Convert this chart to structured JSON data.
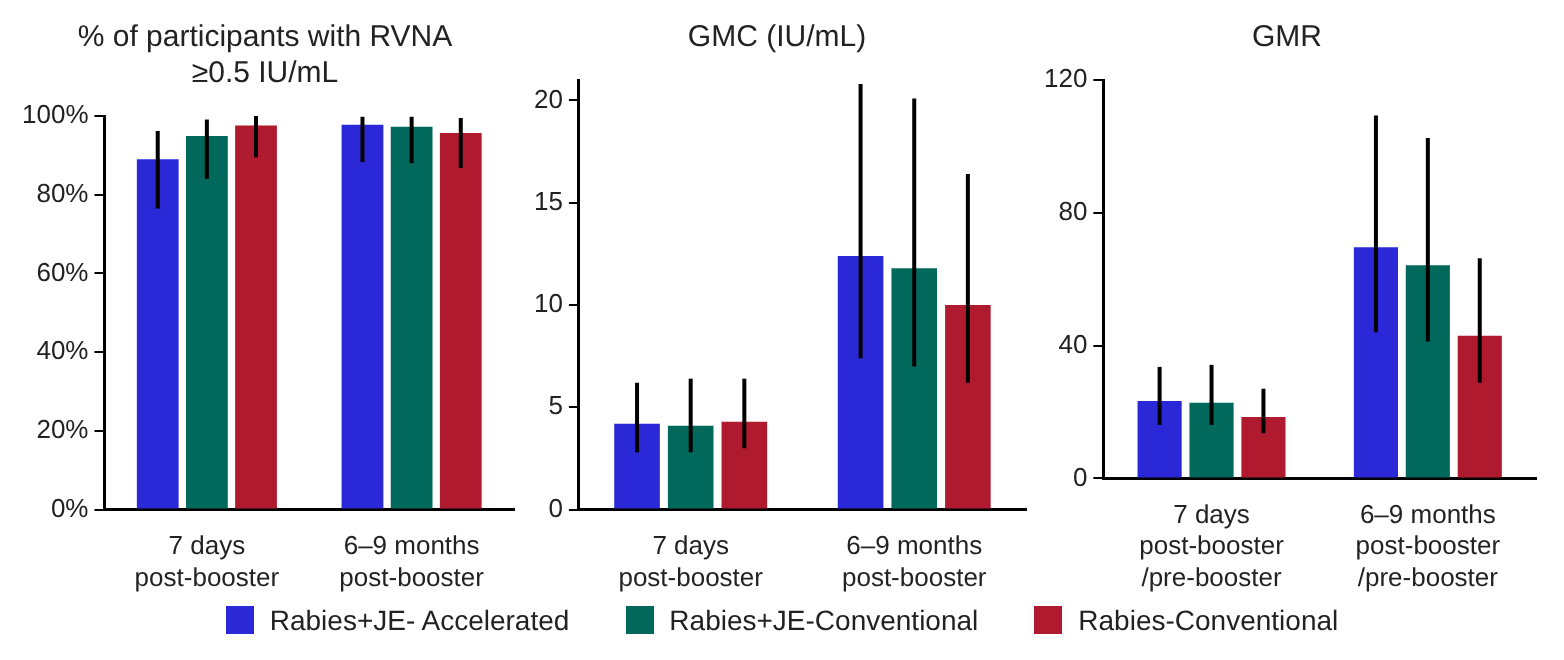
{
  "chart_data": [
    {
      "type": "bar",
      "title": "% of participants with RVNA\n≥0.5 IU/mL",
      "categories": [
        "7 days\npost-booster",
        "6–9 months\npost-booster"
      ],
      "ylim": [
        0,
        100
      ],
      "yticks": [
        {
          "value": 0,
          "label": "0%"
        },
        {
          "value": 20,
          "label": "20%"
        },
        {
          "value": 40,
          "label": "40%"
        },
        {
          "value": 60,
          "label": "60%"
        },
        {
          "value": 80,
          "label": "80%"
        },
        {
          "value": 100,
          "label": "100%"
        }
      ],
      "legend": "bottom",
      "series": [
        {
          "name": "Rabies+JE- Accelerated",
          "color": "#2b28d8",
          "values": [
            89.0,
            97.8
          ],
          "errors": [
            [
              76.5,
              96.2
            ],
            [
              88.3,
              99.8
            ]
          ]
        },
        {
          "name": "Rabies+JE-Conventional",
          "color": "#00695c",
          "values": [
            94.9,
            97.3
          ],
          "errors": [
            [
              84.0,
              99.1
            ],
            [
              88.0,
              99.8
            ]
          ]
        },
        {
          "name": "Rabies-Conventional",
          "color": "#b01a2e",
          "values": [
            97.6,
            95.7
          ],
          "errors": [
            [
              89.5,
              100
            ],
            [
              86.8,
              99.5
            ]
          ]
        }
      ]
    },
    {
      "type": "bar",
      "title": "GMC (IU/mL)",
      "categories": [
        "7 days\npost-booster",
        "6–9 months\npost-booster"
      ],
      "ylim": [
        0,
        21
      ],
      "yticks": [
        0,
        5,
        10,
        15,
        20
      ],
      "series": [
        {
          "color": "#2b28d8",
          "values": [
            4.2,
            12.4
          ],
          "errors": [
            [
              2.8,
              6.2
            ],
            [
              7.4,
              20.8
            ]
          ]
        },
        {
          "color": "#00695c",
          "values": [
            4.1,
            11.8
          ],
          "errors": [
            [
              2.8,
              6.4
            ],
            [
              7.0,
              20.1
            ]
          ]
        },
        {
          "color": "#b01a2e",
          "values": [
            4.3,
            10.0
          ],
          "errors": [
            [
              3.0,
              6.4
            ],
            [
              6.2,
              16.4
            ]
          ]
        }
      ]
    },
    {
      "type": "bar",
      "title": "GMR",
      "categories": [
        "7 days\npost-booster\n/pre-booster",
        "6–9 months\npost-booster\n/pre-booster"
      ],
      "ylim": [
        0,
        120
      ],
      "yticks": [
        0,
        40,
        80,
        120
      ],
      "series": [
        {
          "color": "#2b28d8",
          "values": [
            23.3,
            69.6
          ],
          "errors": [
            [
              16.1,
              33.6
            ],
            [
              44.0,
              109.3
            ]
          ]
        },
        {
          "color": "#00695c",
          "values": [
            22.8,
            64.2
          ],
          "errors": [
            [
              16.1,
              34.2
            ],
            [
              41.2,
              102.5
            ]
          ]
        },
        {
          "color": "#b01a2e",
          "values": [
            18.5,
            43.0
          ],
          "errors": [
            [
              13.6,
              27.0
            ],
            [
              28.8,
              66.3
            ]
          ]
        }
      ]
    }
  ]
}
